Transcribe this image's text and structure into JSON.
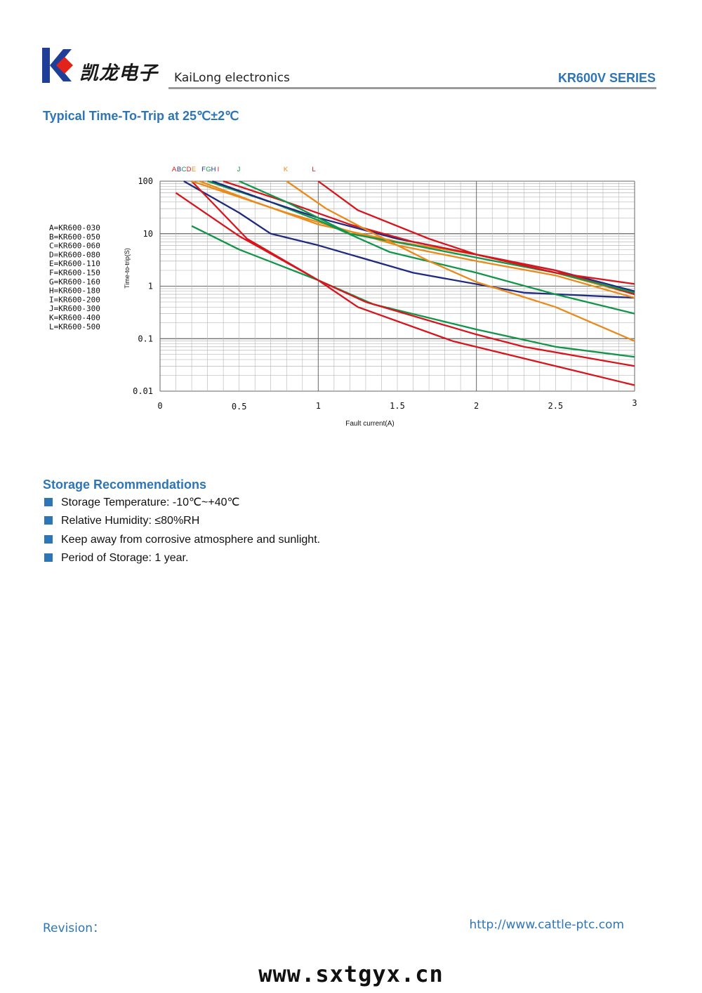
{
  "header": {
    "brand_cn": "凯龙电子",
    "brand_en": "KaiLong electronics",
    "series": "KR600V SERIES",
    "logo_colors": {
      "blue": "#1f3e97",
      "red": "#e2231a"
    }
  },
  "sections": {
    "chart_title": "Typical Time-To-Trip at 25℃±2℃",
    "storage_title": "Storage Recommendations"
  },
  "storage": {
    "items": [
      "Storage Temperature: -10℃~+40℃",
      "Relative Humidity: ≤80%RH",
      "Keep away from corrosive atmosphere and sunlight.",
      "Period of Storage: 1 year."
    ]
  },
  "footer": {
    "revision": "Revision：",
    "website": "http://www.cattle-ptc.com",
    "watermark": "www.sxtgyx.cn"
  },
  "colors": {
    "accent_blue": "#2e75b6",
    "curve_red": "#d8141c",
    "curve_navy": "#1f2a80",
    "curve_green": "#12954a",
    "curve_orange": "#ea8a1a"
  },
  "chart_data": {
    "type": "line",
    "title": "Typical Time-To-Trip at 25℃±2℃",
    "xlabel": "Fault current(A)",
    "ylabel": "Time-to-trip(S)",
    "xlim": [
      0,
      3
    ],
    "ylim": [
      0.01,
      100
    ],
    "yscale": "log",
    "x_ticks": [
      "0",
      "0.5",
      "1",
      "1.5",
      "2",
      "2.5",
      "3"
    ],
    "y_ticks": [
      "100",
      "10",
      "1",
      "0.1",
      "0.01"
    ],
    "legend": [
      "A=KR600-030",
      "B=KR600-050",
      "C=KR600-060",
      "D=KR600-080",
      "E=KR600-110",
      "F=KR600-150",
      "G=KR600-160",
      "H=KR600-180",
      "I=KR600-200",
      "J=KR600-300",
      "K=KR600-400",
      "L=KR600-500"
    ],
    "series": [
      {
        "name": "A",
        "color": "#d8141c",
        "x": [
          0.1,
          0.5,
          1.0,
          1.25,
          1.85,
          2.5,
          3.0
        ],
        "y": [
          60,
          9,
          1.3,
          0.4,
          0.09,
          0.03,
          0.013
        ]
      },
      {
        "name": "B",
        "color": "#12954a",
        "x": [
          0.2,
          0.5,
          1.0,
          1.35,
          2.0,
          2.5,
          3.0
        ],
        "y": [
          14,
          5,
          1.3,
          0.45,
          0.15,
          0.07,
          0.045
        ]
      },
      {
        "name": "C",
        "color": "#1f2a80",
        "x": [
          0.15,
          0.5,
          0.7,
          1.0,
          1.6,
          2.3,
          3.0
        ],
        "y": [
          100,
          25,
          10,
          6,
          1.8,
          0.75,
          0.6
        ]
      },
      {
        "name": "D",
        "color": "#d8141c",
        "x": [
          0.2,
          0.55,
          1.0,
          1.3,
          2.0,
          2.3,
          3.0
        ],
        "y": [
          100,
          8,
          1.3,
          0.5,
          0.12,
          0.07,
          0.03
        ]
      },
      {
        "name": "E",
        "color": "#ea8a1a",
        "x": [
          0.2,
          0.8,
          1.5,
          2.0,
          2.5,
          3.0
        ],
        "y": [
          100,
          25,
          6,
          3,
          1.6,
          0.6
        ]
      },
      {
        "name": "F",
        "color": "#ea8a1a",
        "x": [
          0.25,
          0.6,
          1.0,
          1.5,
          2.0,
          2.5,
          3.0
        ],
        "y": [
          100,
          40,
          15,
          7,
          4,
          1.8,
          0.7
        ]
      },
      {
        "name": "G",
        "color": "#12954a",
        "x": [
          0.3,
          0.7,
          1.0,
          1.45,
          2.0,
          2.5,
          3.0
        ],
        "y": [
          100,
          40,
          18,
          4.5,
          1.8,
          0.7,
          0.3
        ]
      },
      {
        "name": "H",
        "color": "#1f2a80",
        "x": [
          0.33,
          0.7,
          1.0,
          1.5,
          2.0,
          2.5,
          3.0
        ],
        "y": [
          100,
          40,
          20,
          8,
          4,
          2,
          0.8
        ]
      },
      {
        "name": "I",
        "color": "#d8141c",
        "x": [
          0.4,
          0.8,
          1.2,
          1.6,
          2.0,
          2.5,
          3.0
        ],
        "y": [
          100,
          40,
          15,
          7,
          4,
          2,
          0.7
        ]
      },
      {
        "name": "J",
        "color": "#12954a",
        "x": [
          0.5,
          0.8,
          1.2,
          1.6,
          2.0,
          2.5,
          3.0
        ],
        "y": [
          100,
          40,
          10,
          6,
          3.5,
          1.8,
          0.75
        ]
      },
      {
        "name": "K",
        "color": "#ea8a1a",
        "x": [
          0.8,
          1.05,
          1.3,
          1.7,
          2.0,
          2.5,
          3.0
        ],
        "y": [
          100,
          30,
          12,
          3,
          1.2,
          0.4,
          0.09
        ]
      },
      {
        "name": "L",
        "color": "#d8141c",
        "x": [
          1.0,
          1.25,
          1.7,
          2.0,
          2.5,
          3.0
        ],
        "y": [
          100,
          28,
          8,
          4,
          1.8,
          1.1
        ]
      }
    ],
    "top_label_colors": {
      "A": "#d8141c",
      "B": "#1f2a80",
      "C": "#12954a",
      "D": "#d8141c",
      "E": "#ea8a1a",
      "F": "#1f2a80",
      "G": "#12954a",
      "H": "#1f2a80",
      "I": "#d8141c",
      "J": "#12954a",
      "K": "#ea8a1a",
      "L": "#d8141c"
    }
  }
}
